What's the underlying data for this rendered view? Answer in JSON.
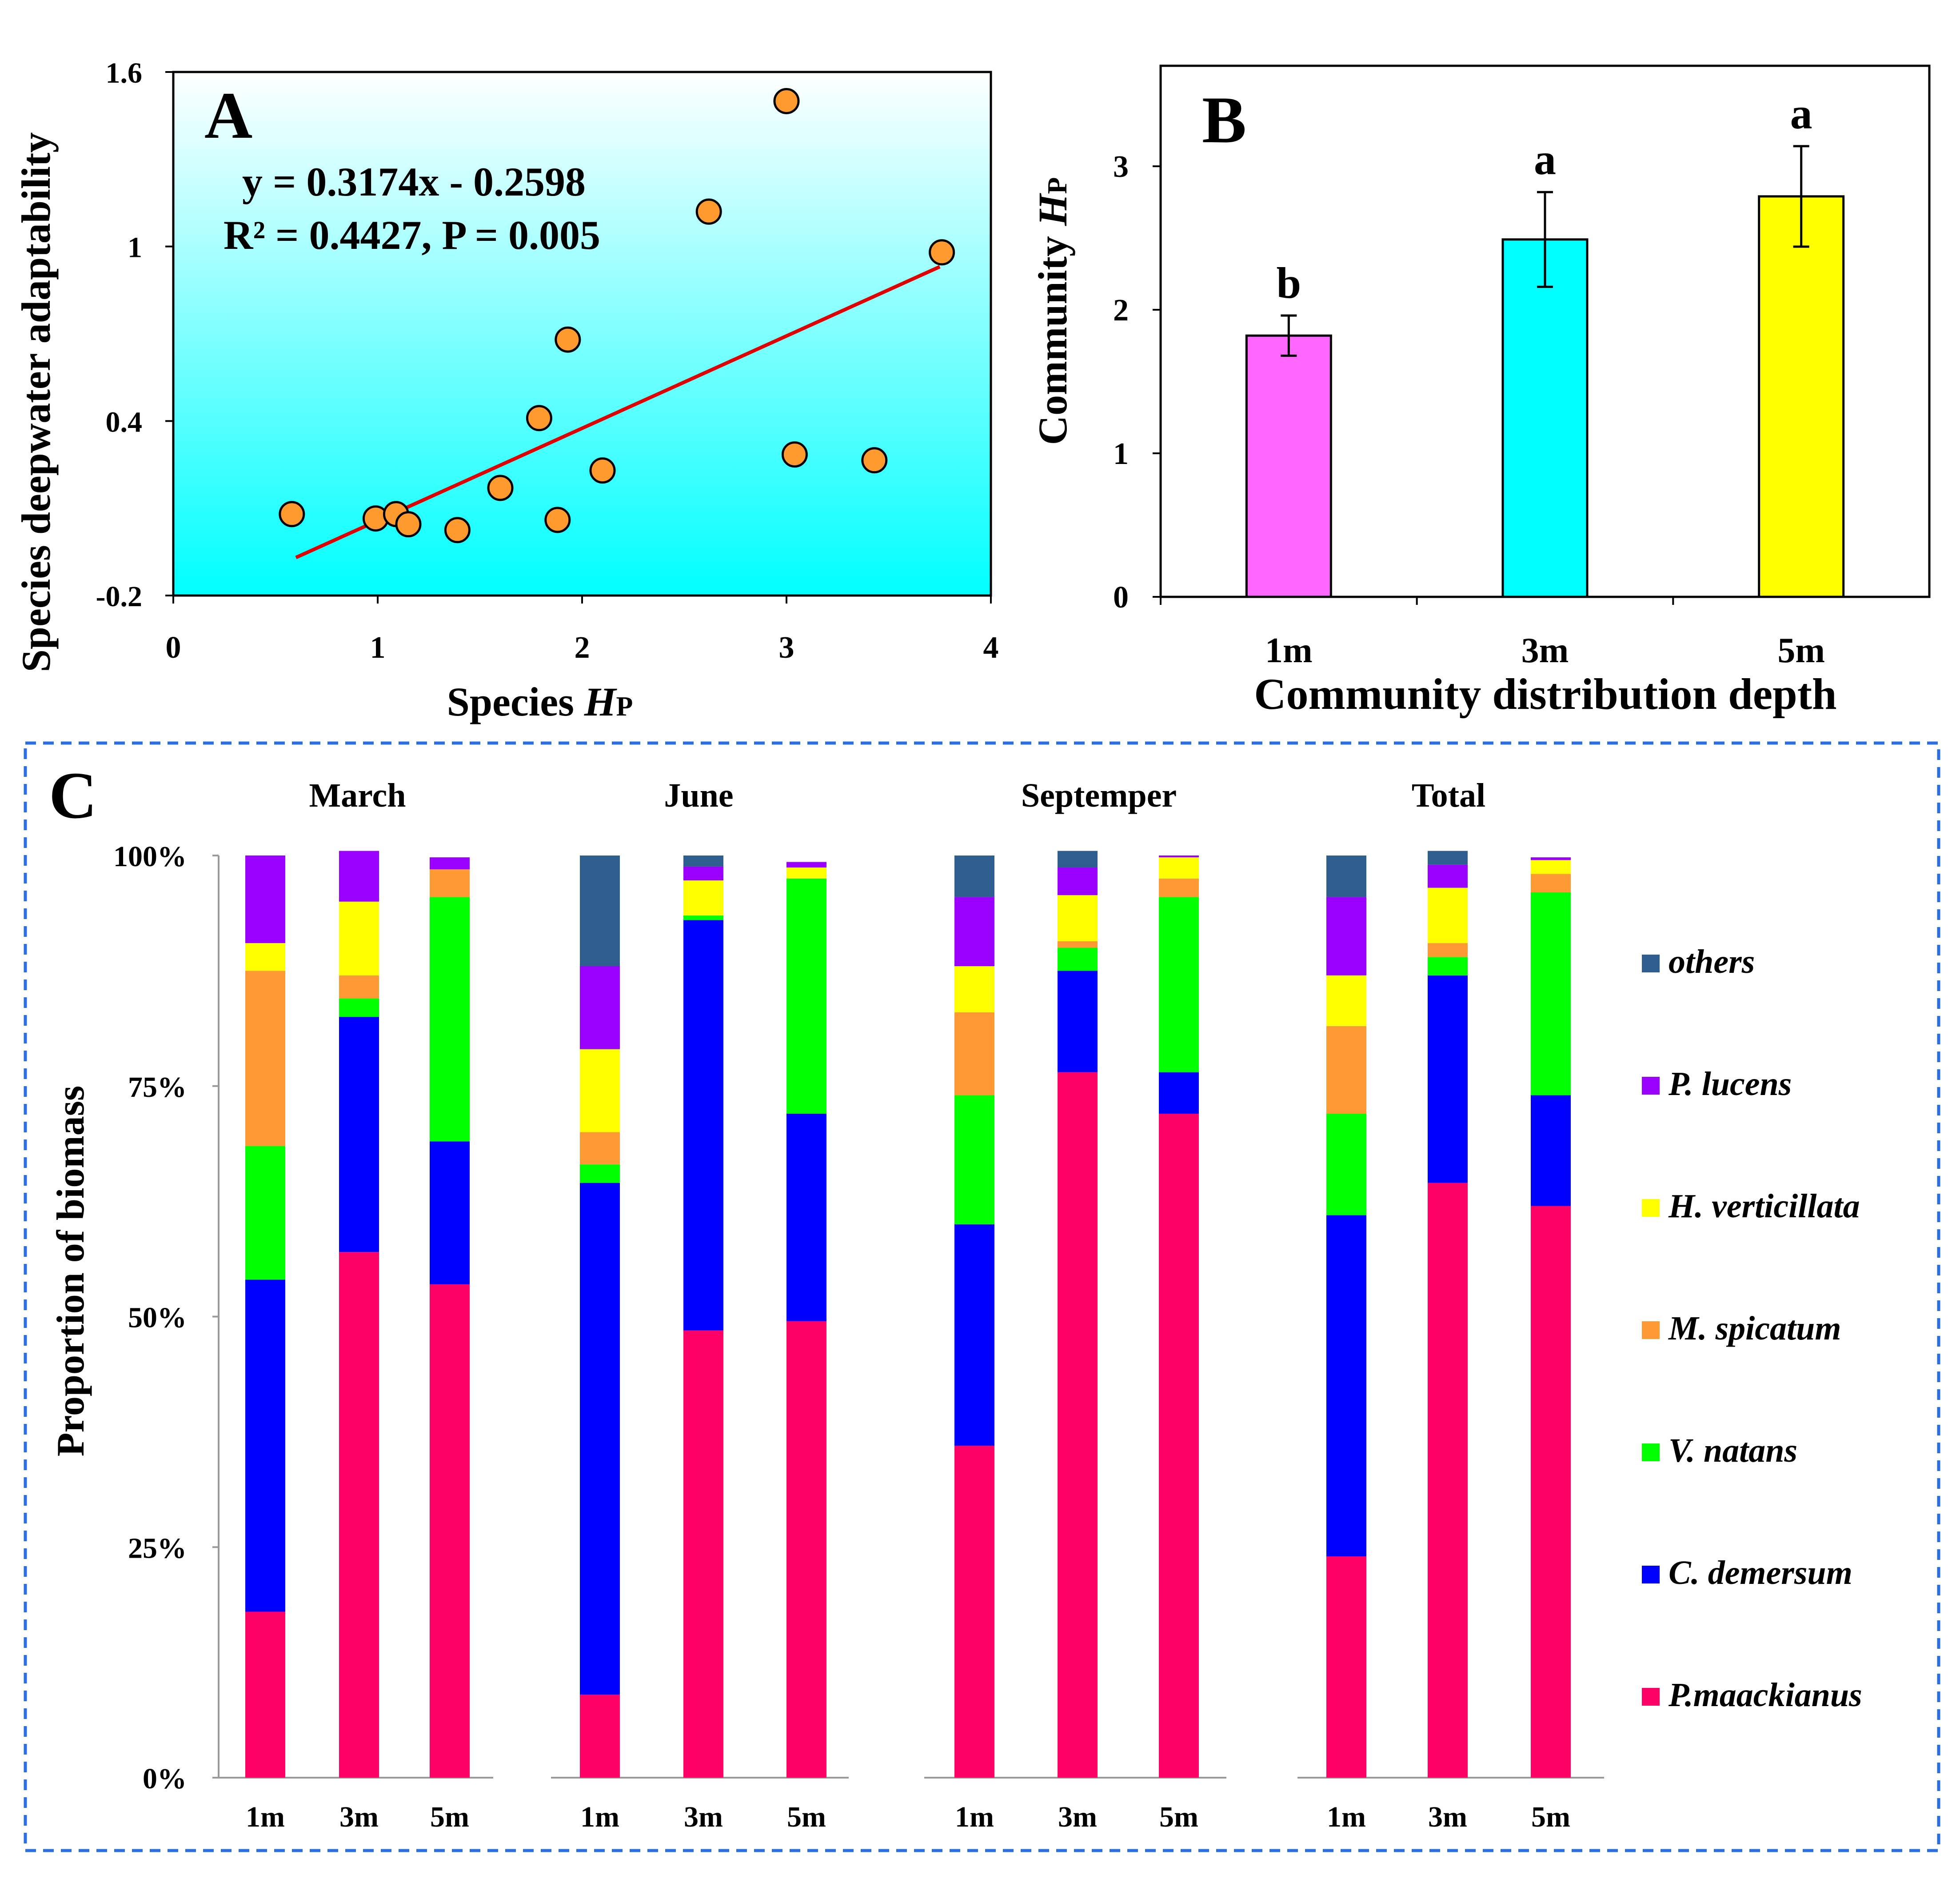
{
  "chart_data": [
    {
      "panel": "A",
      "type": "scatter",
      "panel_label": "A",
      "xlabel_prefix": "Species ",
      "xlabel_var": "H",
      "xlabel_sub": "P",
      "ylabel": "Species deepwater adaptability",
      "xlim": [
        0,
        4
      ],
      "ylim": [
        -0.2,
        1.6
      ],
      "x_ticks": [
        0,
        1,
        2,
        3,
        4
      ],
      "x_tick_labels": [
        "0",
        "1",
        "2",
        "3",
        "4"
      ],
      "y_ticks": [
        -0.2,
        0.4,
        1,
        1.6
      ],
      "y_tick_labels": [
        "-0.2",
        "0.4",
        "1",
        "1.6"
      ],
      "equation": "y = 0.3174x - 0.2598",
      "r2_label": "R² = 0.4427, P = 0.005",
      "fit": {
        "slope": 0.3174,
        "intercept": -0.2598,
        "x_range": [
          0.6,
          3.75
        ]
      },
      "points": [
        {
          "x": 0.58,
          "y": 0.08
        },
        {
          "x": 0.99,
          "y": 0.065
        },
        {
          "x": 1.09,
          "y": 0.08
        },
        {
          "x": 1.15,
          "y": 0.045
        },
        {
          "x": 1.39,
          "y": 0.025
        },
        {
          "x": 1.6,
          "y": 0.17
        },
        {
          "x": 1.79,
          "y": 0.41
        },
        {
          "x": 1.88,
          "y": 0.06
        },
        {
          "x": 1.93,
          "y": 0.68
        },
        {
          "x": 2.1,
          "y": 0.23
        },
        {
          "x": 2.62,
          "y": 1.12
        },
        {
          "x": 3.0,
          "y": 1.5
        },
        {
          "x": 3.04,
          "y": 0.285
        },
        {
          "x": 3.43,
          "y": 0.265
        },
        {
          "x": 3.76,
          "y": 0.98
        }
      ],
      "colors": {
        "point": "#FF9A2E",
        "fit_line": "#E00000"
      }
    },
    {
      "panel": "B",
      "type": "bar",
      "panel_label": "B",
      "xlabel": "Community distribution depth",
      "ylabel_prefix": "Community ",
      "ylabel_var": "H",
      "ylabel_sub": "P",
      "ylim": [
        0,
        3.7
      ],
      "y_ticks": [
        0,
        1,
        2,
        3
      ],
      "categories": [
        "1m",
        "3m",
        "5m"
      ],
      "values": [
        1.82,
        2.49,
        2.79
      ],
      "errors": [
        0.14,
        0.33,
        0.35
      ],
      "significance": [
        "b",
        "a",
        "a"
      ],
      "colors": [
        "#FF66FF",
        "#00FFFF",
        "#FFFF00"
      ]
    },
    {
      "panel": "C",
      "type": "stacked-bar",
      "panel_label": "C",
      "ylabel": "Proportion of biomass",
      "y_tick_labels": [
        "0%",
        "25%",
        "50%",
        "75%",
        "100%"
      ],
      "groups": [
        "March",
        "June",
        "Septemper",
        "Total"
      ],
      "categories": [
        "1m",
        "3m",
        "5m"
      ],
      "series": [
        {
          "name": "P.maackianus",
          "color": "#FF0066",
          "values": [
            [
              18,
              57,
              53.5
            ],
            [
              9,
              48.5,
              49.5
            ],
            [
              36,
              76.5,
              72
            ],
            [
              24,
              64.5,
              62
            ]
          ]
        },
        {
          "name": "C. demersum",
          "color": "#0000FF",
          "values": [
            [
              36,
              25.5,
              15.5
            ],
            [
              55.5,
              44.5,
              22.5
            ],
            [
              24,
              11,
              4.5
            ],
            [
              37,
              22.5,
              12
            ]
          ]
        },
        {
          "name": "V. natans",
          "color": "#00FF00",
          "values": [
            [
              14.5,
              2,
              26.5
            ],
            [
              2,
              0.5,
              25.5
            ],
            [
              14,
              2.5,
              19
            ],
            [
              11,
              2,
              22
            ]
          ]
        },
        {
          "name": "M. spicatum",
          "color": "#FF9933",
          "values": [
            [
              19,
              2.5,
              3
            ],
            [
              3.5,
              0,
              0
            ],
            [
              9,
              0.7,
              2
            ],
            [
              9.5,
              1.5,
              2
            ]
          ]
        },
        {
          "name": "H. verticillata",
          "color": "#FFFF00",
          "values": [
            [
              3,
              8,
              0
            ],
            [
              9,
              3.8,
              1.2
            ],
            [
              5,
              5,
              2.3
            ],
            [
              5.5,
              6,
              1.5
            ]
          ]
        },
        {
          "name": "P. lucens",
          "color": "#9900FF",
          "values": [
            [
              9.5,
              5.5,
              1.3
            ],
            [
              9,
              1.5,
              0.6
            ],
            [
              7.5,
              3,
              0.2
            ],
            [
              8.5,
              2.5,
              0.3
            ]
          ]
        },
        {
          "name": "others",
          "color": "#2E5E8F",
          "values": [
            [
              0,
              0,
              0
            ],
            [
              12,
              1.2,
              0
            ],
            [
              4.5,
              1.8,
              0
            ],
            [
              4.5,
              1.5,
              0
            ]
          ]
        }
      ]
    }
  ]
}
